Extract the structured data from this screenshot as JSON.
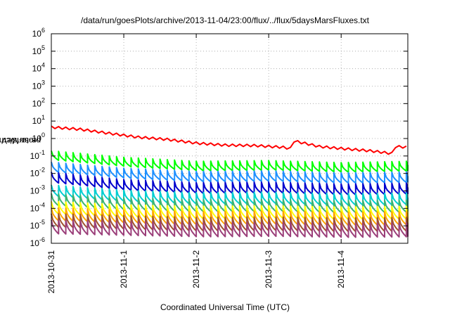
{
  "chart_data": {
    "type": "line",
    "title": "/data/run/goesPlots/archive/2013-11-04/23:00/flux/../flux/5daysMarsFluxes.txt",
    "xlabel": "Coordinated Universal Time (UTC)",
    "ylabel": {
      "base": "protons/cm",
      "sup": "2",
      "rest": "-s-sr-MeV"
    },
    "x_tick_labels": [
      "2013-10-31",
      "2013-11-1",
      "2013-11-2",
      "2013-11-3",
      "2013-11-4"
    ],
    "y_scale": "log",
    "y_tick_exponents": [
      -6,
      -5,
      -4,
      -3,
      -2,
      -1,
      0,
      1,
      2,
      3,
      4,
      5,
      6
    ],
    "xlim_days": [
      0,
      4.92
    ],
    "ylim": [
      1e-06,
      1000000.0
    ],
    "grid": true,
    "sawtooth_period_days": 0.1,
    "series": [
      {
        "color": "#ff0000",
        "x": [
          0,
          0.4,
          0.8,
          1.2,
          1.6,
          2.0,
          2.4,
          2.8,
          3.19,
          3.3,
          3.31,
          3.7,
          4.0,
          4.4,
          4.7,
          4.71,
          4.92
        ],
        "y": [
          4.5,
          3.4,
          2.0,
          1.2,
          0.9,
          0.55,
          0.42,
          0.4,
          0.32,
          0.27,
          0.8,
          0.35,
          0.27,
          0.2,
          0.14,
          0.36,
          0.32
        ]
      },
      {
        "color": "#00ff00",
        "x": [
          0,
          1,
          2,
          3,
          4,
          4.92
        ],
        "y": [
          0.2,
          0.085,
          0.05,
          0.055,
          0.042,
          0.05
        ]
      },
      {
        "color": "#1e90ff",
        "x": [
          0,
          1,
          2,
          3,
          4,
          4.92
        ],
        "y": [
          0.045,
          0.02,
          0.013,
          0.014,
          0.011,
          0.012
        ]
      },
      {
        "color": "#0000cd",
        "x": [
          0,
          1,
          2,
          3,
          4,
          4.92
        ],
        "y": [
          0.012,
          0.0045,
          0.003,
          0.0032,
          0.0025,
          0.0028
        ]
      },
      {
        "color": "#00ced1",
        "x": [
          0,
          1,
          2,
          3,
          4,
          4.92
        ],
        "y": [
          0.0022,
          0.0011,
          0.0008,
          0.00085,
          0.0007,
          0.00075
        ]
      },
      {
        "color": "#3cb371",
        "x": [
          0,
          1,
          2,
          3,
          4,
          4.92
        ],
        "y": [
          0.0007,
          0.0004,
          0.00032,
          0.00033,
          0.00028,
          0.0003
        ]
      },
      {
        "color": "#ffff00",
        "x": [
          0,
          1,
          2,
          3,
          4,
          4.92
        ],
        "y": [
          0.00025,
          0.00016,
          0.00013,
          0.00014,
          0.00012,
          0.00013
        ]
      },
      {
        "color": "#ffa500",
        "x": [
          0,
          1,
          2,
          3,
          4,
          4.92
        ],
        "y": [
          0.00011,
          8e-05,
          6.5e-05,
          7e-05,
          6e-05,
          6.5e-05
        ]
      },
      {
        "color": "#a0522d",
        "x": [
          0,
          1,
          2,
          3,
          4,
          4.92
        ],
        "y": [
          5e-05,
          3.8e-05,
          3e-05,
          3.2e-05,
          2.8e-05,
          3e-05
        ]
      },
      {
        "color": "#9b3f7a",
        "x": [
          0,
          1,
          2,
          3,
          4,
          4.92
        ],
        "y": [
          2.2e-05,
          1.8e-05,
          1.5e-05,
          1.6e-05,
          1.4e-05,
          1.5e-05
        ]
      }
    ]
  }
}
